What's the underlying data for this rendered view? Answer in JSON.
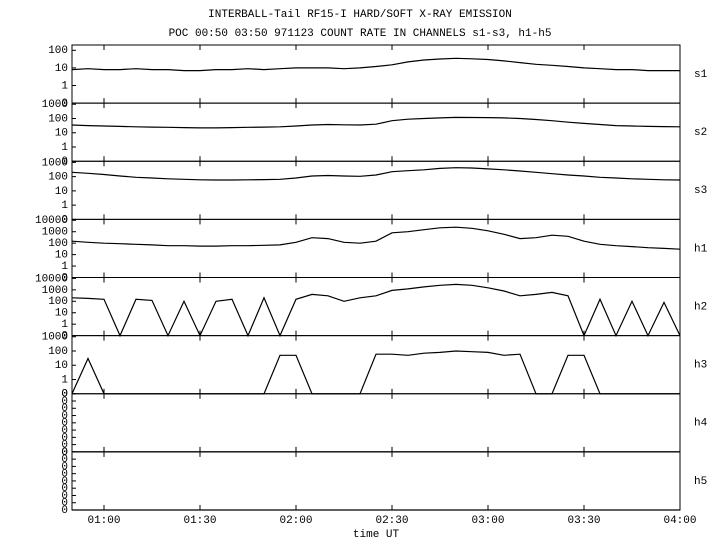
{
  "title": "INTERBALL-Tail RF15-I HARD/SOFT X-RAY EMISSION",
  "subtitle": "POC 00:50 03:50 971123  COUNT RATE IN CHANNELS s1-s3, h1-h5",
  "x_label": "time UT",
  "xlim": [
    "00:50",
    "04:00"
  ],
  "xticks": [
    "01:00",
    "01:30",
    "02:00",
    "02:30",
    "03:00",
    "03:30",
    "04:00"
  ],
  "x": [
    "00:50",
    "00:55",
    "01:00",
    "01:05",
    "01:10",
    "01:15",
    "01:20",
    "01:25",
    "01:30",
    "01:35",
    "01:40",
    "01:45",
    "01:50",
    "01:55",
    "02:00",
    "02:05",
    "02:10",
    "02:15",
    "02:20",
    "02:25",
    "02:30",
    "02:35",
    "02:40",
    "02:45",
    "02:50",
    "02:55",
    "03:00",
    "03:05",
    "03:10",
    "03:15",
    "03:20",
    "03:25",
    "03:30",
    "03:35",
    "03:40",
    "03:45",
    "03:50",
    "03:55",
    "04:00"
  ],
  "chart_data": [
    {
      "type": "line",
      "log_scale": true,
      "ylim": [
        0.1,
        200
      ],
      "yticks": [
        100,
        10,
        1,
        {
          "value": 0.1,
          "label": "0"
        }
      ],
      "series": [
        {
          "name": "s1",
          "color": "#000000",
          "values": [
            8,
            9,
            8,
            8,
            9,
            8,
            8,
            7,
            7,
            8,
            8,
            9,
            8,
            9,
            10,
            10,
            10,
            9,
            10,
            12,
            15,
            22,
            28,
            32,
            35,
            33,
            30,
            25,
            20,
            16,
            14,
            12,
            10,
            9,
            8,
            8,
            7,
            7,
            7
          ]
        }
      ]
    },
    {
      "type": "line",
      "log_scale": true,
      "ylim": [
        0.1,
        1200
      ],
      "yticks": [
        1000,
        100,
        10,
        1,
        {
          "value": 0.1,
          "label": "0"
        }
      ],
      "series": [
        {
          "name": "s2",
          "color": "#000000",
          "values": [
            35,
            32,
            30,
            28,
            26,
            25,
            24,
            23,
            22,
            22,
            23,
            24,
            25,
            26,
            30,
            35,
            38,
            36,
            35,
            40,
            70,
            90,
            100,
            110,
            120,
            118,
            115,
            110,
            100,
            85,
            70,
            55,
            45,
            38,
            32,
            30,
            28,
            27,
            26
          ]
        }
      ]
    },
    {
      "type": "line",
      "log_scale": true,
      "ylim": [
        0.1,
        1200
      ],
      "yticks": [
        1000,
        100,
        10,
        1,
        {
          "value": 0.1,
          "label": "0"
        }
      ],
      "series": [
        {
          "name": "s3",
          "color": "#000000",
          "values": [
            200,
            170,
            140,
            110,
            90,
            80,
            70,
            65,
            60,
            58,
            58,
            60,
            62,
            65,
            80,
            110,
            120,
            110,
            105,
            130,
            220,
            260,
            300,
            380,
            420,
            400,
            350,
            300,
            250,
            200,
            160,
            130,
            110,
            90,
            80,
            70,
            65,
            60,
            58
          ]
        }
      ]
    },
    {
      "type": "line",
      "log_scale": true,
      "ylim": [
        0.1,
        12000
      ],
      "yticks": [
        10000,
        1000,
        100,
        10,
        1,
        {
          "value": 0.1,
          "label": "0"
        }
      ],
      "series": [
        {
          "name": "h1",
          "color": "#000000",
          "values": [
            150,
            120,
            100,
            90,
            80,
            70,
            60,
            60,
            55,
            55,
            60,
            60,
            65,
            70,
            120,
            300,
            250,
            120,
            100,
            150,
            800,
            1000,
            1500,
            2200,
            2500,
            2000,
            1200,
            600,
            250,
            300,
            500,
            400,
            150,
            80,
            60,
            50,
            40,
            35,
            30
          ]
        }
      ]
    },
    {
      "type": "line",
      "log_scale": true,
      "ylim": [
        0.1,
        12000
      ],
      "yticks": [
        10000,
        1000,
        100,
        10,
        1,
        {
          "value": 0.1,
          "label": "0"
        }
      ],
      "series": [
        {
          "name": "h2",
          "color": "#000000",
          "values": [
            200,
            180,
            150,
            0,
            150,
            120,
            0,
            100,
            0,
            100,
            150,
            0,
            200,
            0,
            150,
            400,
            300,
            100,
            200,
            300,
            900,
            1200,
            1800,
            2500,
            3000,
            2500,
            1500,
            800,
            300,
            400,
            600,
            300,
            0,
            150,
            0,
            100,
            0,
            80,
            0
          ]
        }
      ]
    },
    {
      "type": "line",
      "log_scale": true,
      "ylim": [
        0.1,
        1200
      ],
      "yticks": [
        1000,
        100,
        10,
        1,
        {
          "value": 0.1,
          "label": "0"
        }
      ],
      "series": [
        {
          "name": "h3",
          "color": "#000000",
          "values": [
            0,
            30,
            0,
            0,
            0,
            0,
            0,
            0,
            0,
            0,
            0,
            0,
            0,
            50,
            50,
            0,
            0,
            0,
            0,
            60,
            60,
            50,
            70,
            80,
            100,
            90,
            80,
            50,
            60,
            0,
            0,
            50,
            50,
            0,
            0,
            0,
            0,
            0,
            0
          ]
        }
      ]
    },
    {
      "type": "line",
      "log_scale": false,
      "ylim": [
        0,
        0.008
      ],
      "yticks": [
        0,
        {
          "value": 0.001,
          "label": "0"
        },
        {
          "value": 0.002,
          "label": "0"
        },
        {
          "value": 0.003,
          "label": "0"
        },
        {
          "value": 0.004,
          "label": "0"
        },
        {
          "value": 0.005,
          "label": "0"
        },
        {
          "value": 0.006,
          "label": "0"
        },
        {
          "value": 0.007,
          "label": "0"
        },
        {
          "value": 0.008,
          "label": "0"
        }
      ],
      "series": [
        {
          "name": "h4",
          "color": "#000000",
          "values": [
            0,
            0,
            0,
            0,
            0,
            0,
            0,
            0,
            0,
            0,
            0,
            0,
            0,
            0,
            0,
            0,
            0,
            0,
            0,
            0,
            0,
            0,
            0,
            0,
            0,
            0,
            0,
            0,
            0,
            0,
            0,
            0,
            0,
            0,
            0,
            0,
            0,
            0,
            0
          ]
        }
      ]
    },
    {
      "type": "line",
      "log_scale": false,
      "ylim": [
        0,
        0.008
      ],
      "yticks": [
        0,
        {
          "value": 0.001,
          "label": "0"
        },
        {
          "value": 0.002,
          "label": "0"
        },
        {
          "value": 0.003,
          "label": "0"
        },
        {
          "value": 0.004,
          "label": "0"
        },
        {
          "value": 0.005,
          "label": "0"
        },
        {
          "value": 0.006,
          "label": "0"
        },
        {
          "value": 0.007,
          "label": "0"
        },
        {
          "value": 0.008,
          "label": "0"
        }
      ],
      "series": [
        {
          "name": "h5",
          "color": "#000000",
          "values": [
            0,
            0,
            0,
            0,
            0,
            0,
            0,
            0,
            0,
            0,
            0,
            0,
            0,
            0,
            0,
            0,
            0,
            0,
            0,
            0,
            0,
            0,
            0,
            0,
            0,
            0,
            0,
            0,
            0,
            0,
            0,
            0,
            0,
            0,
            0,
            0,
            0,
            0,
            0
          ]
        }
      ]
    }
  ]
}
